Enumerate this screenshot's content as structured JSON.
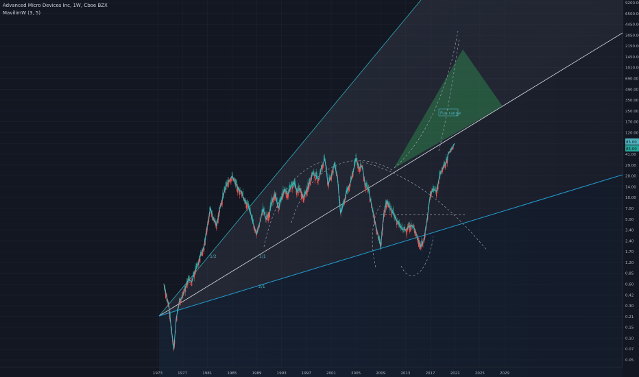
{
  "header": {
    "symbol_line": "Advanced Micro Devices Inc, 1W, Cboe BZX",
    "indicator_line": "MavilimW (3, 5)"
  },
  "colors": {
    "background": "#131722",
    "up": "#26a69a",
    "down": "#ef5350",
    "mavilim_up": "#4fb3bf",
    "mavilim_down": "#f23645",
    "fan_upper": "#2ea3b0",
    "fan_lower": "#2196c8",
    "fan_middle": "#c8ccd4",
    "target_zone": "#2e7d4b"
  },
  "chart_data": {
    "type": "line",
    "scale": "log",
    "x_axis_ticks": [
      "1973",
      "1977",
      "1981",
      "1985",
      "1989",
      "1993",
      "1997",
      "2001",
      "2005",
      "2009",
      "2013",
      "2017",
      "2021",
      "2025",
      "2029"
    ],
    "y_axis_ticks": [
      "9200.00",
      "6500.00",
      "4450.00",
      "3050.00",
      "2150.00",
      "1450.00",
      "1010.00",
      "690.00",
      "490.00",
      "350.00",
      "250.00",
      "170.00",
      "120.00",
      "85.00",
      "41.00",
      "29.00",
      "20.00",
      "14.00",
      "10.00",
      "7.00",
      "5.00",
      "3.40",
      "2.40",
      "1.70",
      "1.20",
      "0.85",
      "0.60",
      "0.42",
      "0.30",
      "0.21",
      "0.15",
      "0.10",
      "0.07",
      "0.05"
    ],
    "last_price_labels": [
      "85.00",
      "85.00"
    ],
    "annotations": {
      "fan_labels": [
        "1/2",
        "1/1",
        "2/1"
      ],
      "target_label": "Fun range"
    },
    "series": [
      {
        "role": "price",
        "x": [
          1974.0,
          1974.3,
          1974.8,
          1975.2,
          1975.6,
          1976.0,
          1976.5,
          1977.0,
          1977.5,
          1978.0,
          1978.5,
          1979.0,
          1979.5,
          1980.0,
          1980.5,
          1981.0,
          1981.5,
          1982.0,
          1982.5,
          1983.0,
          1983.5,
          1984.0,
          1984.5,
          1985.0,
          1985.5,
          1986.0,
          1986.5,
          1987.0,
          1987.5,
          1988.0,
          1988.5,
          1989.0,
          1989.5,
          1990.0,
          1990.5,
          1991.0,
          1991.5,
          1992.0,
          1992.5,
          1993.0,
          1993.5,
          1994.0,
          1994.5,
          1995.0,
          1995.5,
          1996.0,
          1996.5,
          1997.0,
          1997.5,
          1998.0,
          1998.5,
          1999.0,
          1999.5,
          2000.0,
          2000.5,
          2001.0,
          2001.5,
          2002.0,
          2002.5,
          2003.0,
          2003.5,
          2004.0,
          2004.5,
          2005.0,
          2005.5,
          2006.0,
          2006.5,
          2007.0,
          2007.5,
          2008.0,
          2008.5,
          2009.0,
          2009.5,
          2010.0,
          2010.5,
          2011.0,
          2011.5,
          2012.0,
          2012.5,
          2013.0,
          2013.5,
          2014.0,
          2014.5,
          2015.0,
          2015.5,
          2016.0,
          2016.5,
          2017.0,
          2017.5,
          2018.0,
          2018.5,
          2019.0,
          2019.5,
          2020.0,
          2020.5,
          2020.9
        ],
        "values": [
          0.6,
          0.45,
          0.3,
          0.14,
          0.07,
          0.2,
          0.35,
          0.4,
          0.55,
          0.7,
          0.65,
          0.9,
          1.1,
          1.6,
          2.0,
          4.0,
          7.0,
          5.0,
          4.0,
          7.0,
          10.0,
          14.0,
          17.0,
          20.0,
          16.0,
          13.0,
          12.0,
          9.0,
          8.0,
          6.0,
          4.0,
          3.0,
          4.5,
          7.0,
          5.0,
          6.0,
          9.0,
          11.0,
          7.0,
          10.0,
          13.0,
          11.0,
          14.0,
          16.0,
          12.0,
          13.0,
          10.0,
          12.0,
          16.0,
          22.0,
          20.0,
          18.0,
          28.0,
          35.0,
          15.0,
          20.0,
          30.0,
          20.0,
          6.0,
          8.0,
          12.0,
          15.0,
          22.0,
          36.0,
          26.0,
          28.0,
          15.0,
          13.0,
          8.0,
          5.0,
          3.0,
          2.0,
          6.0,
          9.0,
          7.0,
          6.0,
          5.0,
          4.0,
          3.5,
          3.4,
          3.8,
          4.0,
          3.5,
          2.5,
          2.0,
          2.5,
          5.0,
          11.0,
          13.0,
          12.0,
          20.0,
          26.0,
          30.0,
          45.0,
          60.0,
          85.0
        ]
      }
    ]
  }
}
